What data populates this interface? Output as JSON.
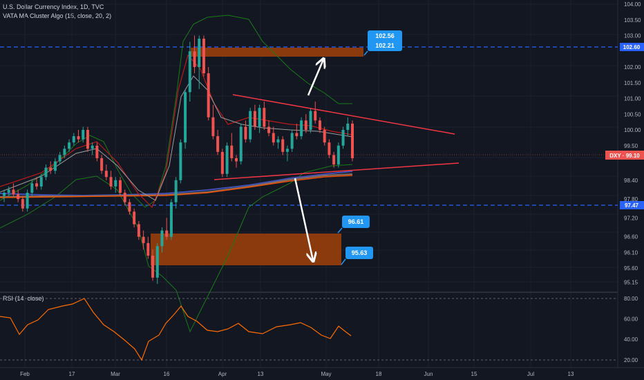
{
  "legend": {
    "symbol": "U.S. Dollar Currency Index, 1D, TVC",
    "indicator": "VATA MA Cluster Algo (15, close, 20, 2)",
    "rsi": "RSI (14, close)"
  },
  "price_axis": {
    "ticks": [
      "104.00",
      "103.50",
      "103.00",
      "102.60",
      "102.00",
      "101.50",
      "101.00",
      "100.50",
      "100.00",
      "99.50",
      "99.10",
      "98.40",
      "97.80",
      "97.47",
      "97.20",
      "96.60",
      "96.10",
      "95.60",
      "95.15"
    ],
    "ticks_values": [
      104.0,
      103.5,
      103.0,
      102.6,
      102.0,
      101.5,
      101.0,
      100.5,
      100.0,
      99.5,
      99.1,
      98.4,
      97.8,
      97.47,
      97.2,
      96.6,
      96.1,
      95.6,
      95.15
    ],
    "current_tag": "DXY · 99.10",
    "level_tags": [
      "102.60",
      "97.47"
    ]
  },
  "rsi_axis": {
    "ticks": [
      "80.00",
      "60.00",
      "40.00",
      "20.00"
    ],
    "ticks_values": [
      80,
      60,
      40,
      20
    ]
  },
  "date_axis": {
    "labels": [
      "Feb",
      "17",
      "Mar",
      "16",
      "Apr",
      "13",
      "May",
      "18",
      "Jun",
      "15",
      "Jul",
      "13"
    ]
  },
  "annotations": {
    "upper_callout_1": "102.56",
    "upper_callout_2": "102.21",
    "lower_callout_1": "96.61",
    "lower_callout_2": "95.63"
  },
  "colors": {
    "background": "#131722",
    "up_candle": "#26a69a",
    "down_candle": "#ef5350",
    "trendline": "#f23645",
    "level_line": "#2962ff",
    "zone": "#8b3a0e",
    "rsi_line": "#ff6d00",
    "callout": "#2196f3"
  },
  "chart_data": {
    "type": "candlestick",
    "symbol": "DXY",
    "current_price": 99.1,
    "horizontal_levels": [
      102.6,
      97.47
    ],
    "zones": [
      {
        "top": 102.56,
        "bottom": 102.21
      },
      {
        "top": 96.61,
        "bottom": 95.63
      }
    ],
    "ohlc_approx": [
      [
        97.9,
        98.1,
        97.7,
        98.0
      ],
      [
        98.0,
        98.2,
        97.9,
        98.1
      ],
      [
        98.1,
        98.3,
        97.9,
        97.95
      ],
      [
        97.95,
        98.1,
        97.7,
        97.8
      ],
      [
        97.8,
        97.9,
        97.4,
        97.5
      ],
      [
        97.5,
        98.1,
        97.4,
        98.0
      ],
      [
        98.0,
        98.4,
        97.9,
        98.3
      ],
      [
        98.3,
        98.5,
        98.1,
        98.2
      ],
      [
        98.2,
        98.6,
        98.1,
        98.5
      ],
      [
        98.5,
        98.9,
        98.4,
        98.8
      ],
      [
        98.8,
        99.0,
        98.6,
        98.7
      ],
      [
        98.7,
        99.1,
        98.6,
        99.0
      ],
      [
        99.0,
        99.3,
        98.9,
        99.2
      ],
      [
        99.2,
        99.5,
        99.1,
        99.4
      ],
      [
        99.4,
        99.7,
        99.3,
        99.6
      ],
      [
        99.6,
        99.9,
        99.5,
        99.8
      ],
      [
        99.8,
        100.0,
        99.6,
        99.7
      ],
      [
        99.7,
        100.1,
        99.6,
        100.0
      ],
      [
        100.0,
        100.1,
        99.3,
        99.4
      ],
      [
        99.4,
        99.6,
        99.2,
        99.5
      ],
      [
        99.5,
        99.6,
        99.0,
        99.1
      ],
      [
        99.1,
        99.2,
        98.6,
        98.7
      ],
      [
        98.7,
        98.9,
        98.4,
        98.5
      ],
      [
        98.5,
        98.7,
        98.1,
        98.2
      ],
      [
        98.2,
        98.5,
        98.0,
        98.4
      ],
      [
        98.4,
        98.5,
        97.9,
        98.0
      ],
      [
        98.0,
        98.1,
        97.6,
        97.7
      ],
      [
        97.7,
        97.8,
        97.3,
        97.4
      ],
      [
        97.4,
        97.5,
        96.9,
        97.0
      ],
      [
        97.0,
        97.1,
        96.5,
        96.6
      ],
      [
        96.6,
        96.8,
        96.2,
        96.4
      ],
      [
        96.4,
        96.6,
        95.9,
        96.0
      ],
      [
        96.0,
        96.2,
        95.2,
        95.3
      ],
      [
        95.3,
        96.4,
        95.1,
        96.3
      ],
      [
        96.3,
        96.9,
        96.1,
        96.8
      ],
      [
        96.8,
        97.2,
        96.5,
        96.6
      ],
      [
        96.6,
        97.8,
        96.5,
        97.7
      ],
      [
        97.7,
        98.5,
        97.5,
        98.4
      ],
      [
        98.4,
        99.7,
        98.3,
        99.6
      ],
      [
        99.6,
        101.3,
        99.4,
        101.2
      ],
      [
        101.2,
        102.8,
        100.9,
        102.5
      ],
      [
        102.5,
        103.0,
        101.8,
        102.0
      ],
      [
        102.0,
        103.0,
        101.3,
        102.9
      ],
      [
        102.9,
        103.0,
        101.7,
        101.8
      ],
      [
        101.8,
        102.0,
        100.3,
        100.4
      ],
      [
        100.4,
        100.8,
        99.7,
        99.8
      ],
      [
        99.8,
        100.0,
        99.2,
        99.3
      ],
      [
        99.3,
        99.4,
        98.5,
        98.6
      ],
      [
        98.6,
        99.6,
        98.5,
        99.5
      ],
      [
        99.5,
        99.9,
        99.0,
        99.1
      ],
      [
        99.1,
        99.2,
        98.8,
        99.0
      ],
      [
        99.0,
        100.2,
        98.9,
        100.1
      ],
      [
        100.1,
        100.3,
        99.6,
        99.7
      ],
      [
        99.7,
        100.7,
        99.6,
        100.6
      ],
      [
        100.6,
        100.8,
        100.0,
        100.1
      ],
      [
        100.1,
        100.8,
        99.9,
        100.7
      ],
      [
        100.7,
        100.9,
        100.0,
        100.1
      ],
      [
        100.1,
        100.3,
        99.8,
        99.9
      ],
      [
        99.9,
        100.1,
        99.5,
        99.6
      ],
      [
        99.6,
        99.8,
        99.4,
        99.7
      ],
      [
        99.7,
        99.8,
        99.2,
        99.3
      ],
      [
        99.3,
        99.5,
        99.0,
        99.4
      ],
      [
        99.4,
        100.0,
        99.3,
        99.9
      ],
      [
        99.9,
        100.2,
        99.7,
        99.8
      ],
      [
        99.8,
        100.4,
        99.7,
        100.3
      ],
      [
        100.3,
        100.5,
        99.9,
        100.0
      ],
      [
        100.0,
        100.7,
        99.9,
        100.6
      ],
      [
        100.6,
        100.9,
        100.2,
        100.3
      ],
      [
        100.3,
        100.4,
        99.9,
        100.0
      ],
      [
        100.0,
        100.1,
        99.5,
        99.6
      ],
      [
        99.6,
        99.7,
        99.1,
        99.2
      ],
      [
        99.2,
        99.3,
        98.8,
        98.9
      ],
      [
        98.9,
        99.6,
        98.8,
        99.5
      ],
      [
        99.5,
        100.1,
        99.4,
        100.0
      ],
      [
        100.0,
        100.4,
        99.8,
        100.2
      ],
      [
        100.2,
        100.3,
        99.0,
        99.1
      ]
    ]
  }
}
